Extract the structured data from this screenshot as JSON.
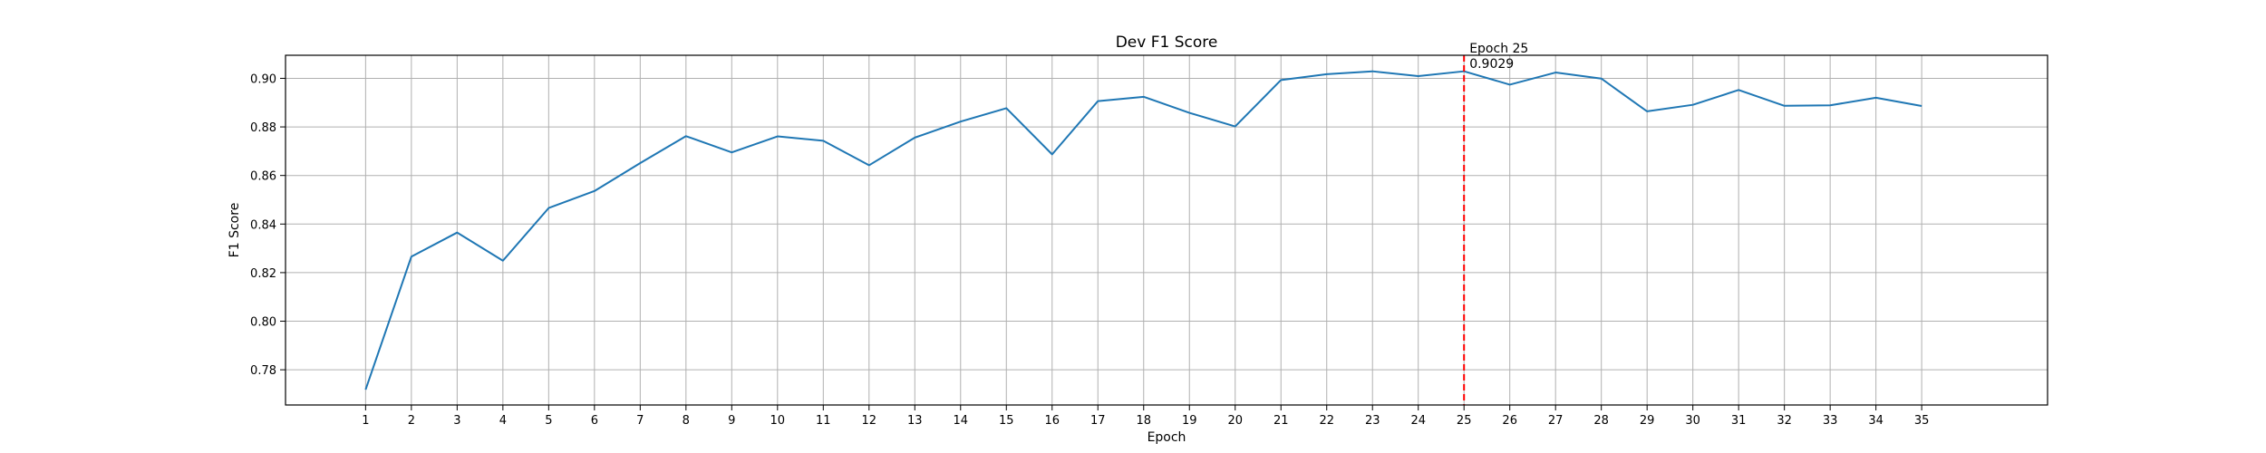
{
  "chart_data": {
    "type": "line",
    "title": "Dev F1 Score",
    "xlabel": "Epoch",
    "ylabel": "F1 Score",
    "x": [
      1,
      2,
      3,
      4,
      5,
      6,
      7,
      8,
      9,
      10,
      11,
      12,
      13,
      14,
      15,
      16,
      17,
      18,
      19,
      20,
      21,
      22,
      23,
      24,
      25,
      26,
      27,
      28,
      29,
      30,
      31,
      32,
      33,
      34,
      35
    ],
    "series": [
      {
        "name": "",
        "color": "#1f77b4",
        "values": [
          0.7718,
          0.8266,
          0.8365,
          0.8249,
          0.8466,
          0.8536,
          0.8651,
          0.8762,
          0.8695,
          0.8761,
          0.8743,
          0.8642,
          0.8756,
          0.8822,
          0.8877,
          0.8687,
          0.8906,
          0.8924,
          0.8858,
          0.8802,
          0.8993,
          0.9017,
          0.9029,
          0.9009,
          0.9029,
          0.8974,
          0.9024,
          0.8999,
          0.8864,
          0.8891,
          0.8952,
          0.8887,
          0.8889,
          0.892,
          0.8886
        ]
      }
    ],
    "xlim": [
      -0.75,
      37.75
    ],
    "ylim": [
      0.7655,
      0.9095
    ],
    "xticks": [
      "1",
      "2",
      "3",
      "4",
      "5",
      "6",
      "7",
      "8",
      "9",
      "10",
      "11",
      "12",
      "13",
      "14",
      "15",
      "16",
      "17",
      "18",
      "19",
      "20",
      "21",
      "22",
      "23",
      "24",
      "25",
      "26",
      "27",
      "28",
      "29",
      "30",
      "31",
      "32",
      "33",
      "34",
      "35"
    ],
    "yticks": [
      "0.78",
      "0.80",
      "0.82",
      "0.84",
      "0.86",
      "0.88",
      "0.90"
    ],
    "grid": true,
    "best_epoch": {
      "x": 25,
      "color": "#ff0000",
      "label_line1": "Epoch 25",
      "label_line2": "0.9029"
    }
  }
}
